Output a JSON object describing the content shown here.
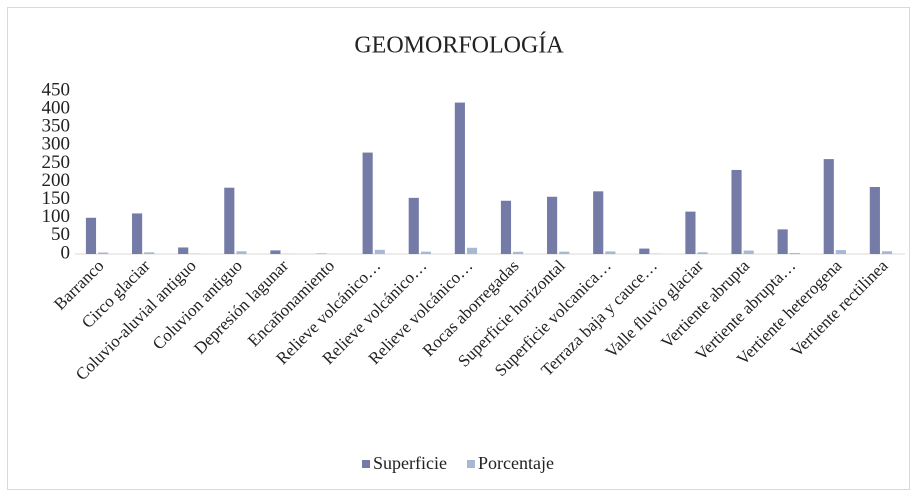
{
  "chart_data": {
    "type": "bar",
    "title": "GEOMORFOLOGÍA",
    "categories": [
      "Barranco",
      "Circo glaciar",
      "Coluvio-aluvial antiguo",
      "Coluvion antiguo",
      "Depresión lagunar",
      "Encañonamiento",
      "Relieve volcánico…",
      "Relieve volcánico…",
      "Relieve volcánico…",
      "Rocas aborregadas",
      "Superficie horizontal",
      "Superficie volcanica…",
      "Terraza baja y cauce…",
      "Valle fluvio glaciar",
      "Vertiente abrupta",
      "Vertiente abrupta…",
      "Vertiente heterogena",
      "Vertiente rectilinea"
    ],
    "series": [
      {
        "name": "Superficie",
        "color": "#737ba6",
        "values": [
          100,
          112,
          18,
          183,
          10,
          1,
          280,
          155,
          418,
          147,
          158,
          173,
          15,
          117,
          232,
          68,
          262,
          185
        ]
      },
      {
        "name": "Porcentaje",
        "color": "#a8b8d2",
        "values": [
          4.1,
          4.6,
          0.7,
          7.5,
          0.4,
          0.04,
          11.5,
          6.4,
          17.2,
          6.0,
          6.5,
          7.1,
          0.6,
          4.8,
          9.5,
          2.8,
          10.8,
          7.6
        ]
      }
    ],
    "ylim": [
      0,
      450
    ],
    "yticks": [
      0,
      50,
      100,
      150,
      200,
      250,
      300,
      350,
      400,
      450
    ],
    "legend": "bottom"
  }
}
